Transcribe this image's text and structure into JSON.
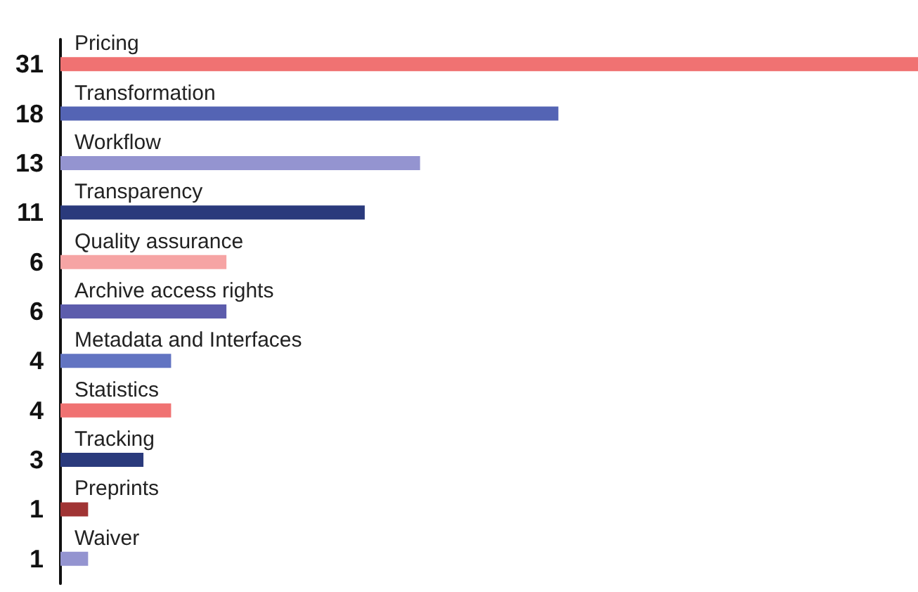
{
  "chart_data": {
    "type": "bar",
    "orientation": "horizontal",
    "data_labels": true,
    "categories": [
      "Pricing",
      "Transformation",
      "Workflow",
      "Transparency",
      "Quality assurance",
      "Archive access rights",
      "Metadata and Interfaces",
      "Statistics",
      "Tracking",
      "Preprints",
      "Waiver"
    ],
    "values": [
      31,
      18,
      13,
      11,
      6,
      6,
      4,
      4,
      3,
      1,
      1
    ],
    "colors": [
      "#f07272",
      "#5464b4",
      "#9494d0",
      "#2a3a7c",
      "#f6a4a4",
      "#5c5cac",
      "#6274c2",
      "#f07272",
      "#2a3a7c",
      "#a03434",
      "#9494d0"
    ]
  }
}
